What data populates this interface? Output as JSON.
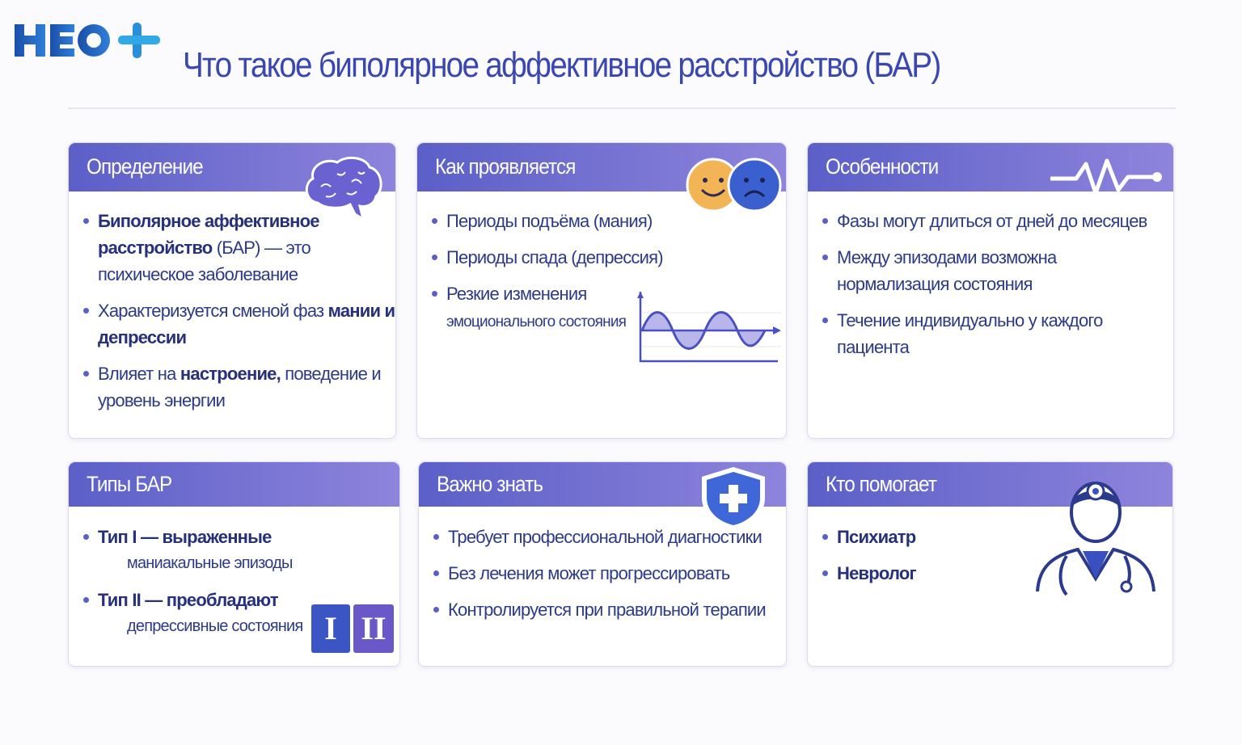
{
  "logo": {
    "text": "НЕО+",
    "colors": [
      "#1d5fb8",
      "#2aa0e0"
    ]
  },
  "title": "Что такое биполярное аффективное расстройство (БАР)",
  "cards": {
    "definition": {
      "title": "Определение",
      "items": [
        {
          "bold": "Биполярное аффективное расстройство",
          "rest": " (БАР) — это психическое заболевание"
        },
        {
          "pre": "Характеризуется сменой фаз ",
          "bold": "мании и депрессии"
        },
        {
          "pre": "Влияет на ",
          "bold": "настроение,",
          "rest": " поведение и уровень энергии"
        }
      ]
    },
    "manifest": {
      "title": "Как проявляется",
      "items": [
        "Периоды подъёма (мания)",
        "Периоды спада (депрессия)"
      ],
      "item3_l1": "Резкие изменения",
      "item3_l2": "эмоционального состояния"
    },
    "features": {
      "title": "Особенности",
      "items": [
        "Фазы могут длиться от дней до месяцев",
        "Между эпизодами возможна нормализация состояния",
        "Течение индивидуально у каждого пациента"
      ]
    },
    "types": {
      "title": "Типы БАР",
      "items": [
        {
          "bold": "Тип I — выраженные",
          "rest": "маниакальные эпизоды"
        },
        {
          "bold": "Тип II — преобладают",
          "rest": "депрессивные состояния"
        }
      ],
      "badges": [
        "I",
        "II"
      ]
    },
    "important": {
      "title": "Важно знать",
      "items": [
        "Требует профессиональной диагностики",
        "Без лечения может прогрессировать",
        "Контролируется при правильной терапии"
      ]
    },
    "helpers": {
      "title": "Кто помогает",
      "items": [
        "Психиатр",
        "Невролог"
      ]
    }
  },
  "colors": {
    "accent": "#5b5fc7",
    "accent2": "#8e84dc",
    "text": "#2d3a86",
    "title": "#3a47b0"
  }
}
